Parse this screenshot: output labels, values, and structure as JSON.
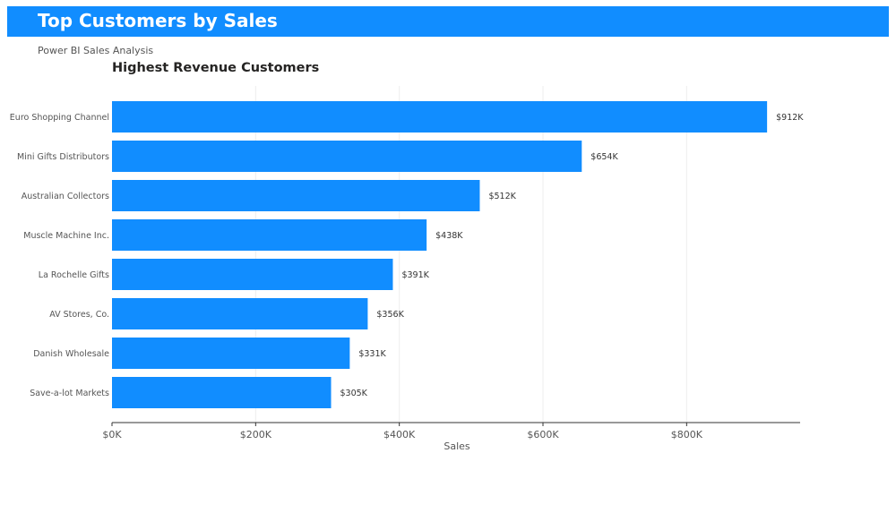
{
  "header": {
    "title": "Top Customers by Sales",
    "subtitle": "Power BI Sales Analysis"
  },
  "colors": {
    "accent": "#118DFF",
    "bar": "#118DFF",
    "grid": "#eeeeee",
    "axis": "#333333",
    "text": "#555555"
  },
  "chart_data": {
    "type": "bar",
    "orientation": "horizontal",
    "title": "Highest Revenue Customers",
    "xlabel": "Sales",
    "ylabel": "",
    "categories": [
      "Euro Shopping Channel",
      "Mini Gifts Distributors",
      "Australian Collectors",
      "Muscle Machine Inc.",
      "La Rochelle Gifts",
      "AV Stores, Co.",
      "Danish Wholesale",
      "Save-a-lot Markets"
    ],
    "values": [
      912000,
      654000,
      512000,
      438000,
      391000,
      356000,
      331000,
      305000
    ],
    "value_labels": [
      "$912K",
      "$654K",
      "$512K",
      "$438K",
      "$391K",
      "$356K",
      "$331K",
      "$305K"
    ],
    "xlim": [
      0,
      958000
    ],
    "xticks": [
      0,
      200000,
      400000,
      600000,
      800000
    ],
    "xtick_labels": [
      "$0K",
      "$200K",
      "$400K",
      "$600K",
      "$800K"
    ],
    "grid": true,
    "legend": "none"
  }
}
